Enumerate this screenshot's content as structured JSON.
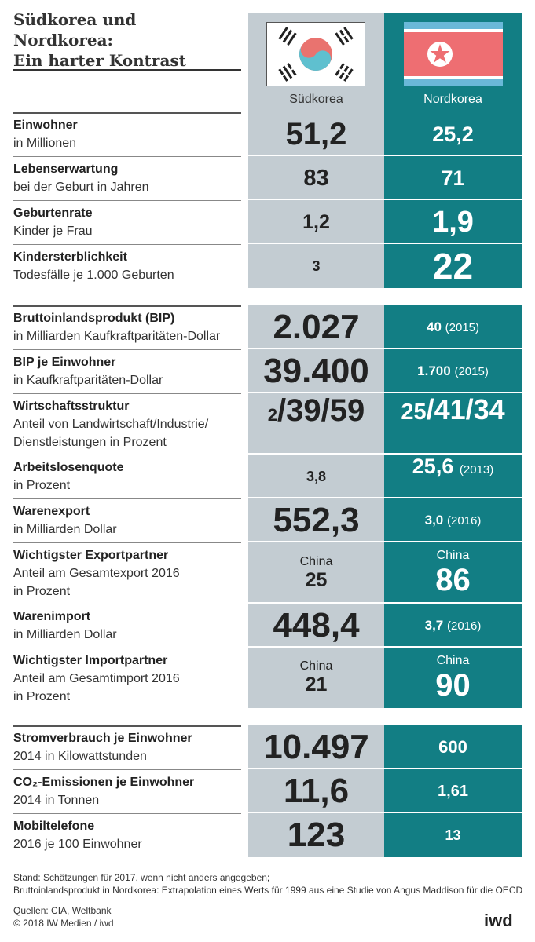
{
  "title_line1": "Südkorea und Nordkorea:",
  "title_line2": "Ein harter Kontrast",
  "colors": {
    "south_bg": "#c3ccd2",
    "north_bg": "#127e84"
  },
  "flags": {
    "south": "south-korea-flag-icon",
    "north": "north-korea-flag-icon"
  },
  "chart_data": {
    "type": "table",
    "title": "Südkorea und Nordkorea: Ein harter Kontrast",
    "columns": [
      "Südkorea",
      "Nordkorea"
    ],
    "rows": [
      {
        "label": "Einwohner",
        "sub": "in Millionen",
        "south": "51,2",
        "north": "25,2"
      },
      {
        "label": "Lebenserwartung",
        "sub": "bei der Geburt in Jahren",
        "south": "83",
        "north": "71"
      },
      {
        "label": "Geburtenrate",
        "sub": "Kinder je Frau",
        "south": "1,2",
        "north": "1,9"
      },
      {
        "label": "Kindersterblichkeit",
        "sub": "Todesfälle je 1.000 Geburten",
        "south": "3",
        "north": "22"
      },
      {
        "label": "Bruttoinlandsprodukt (BIP)",
        "sub": "in Milliarden Kaufkraftparitäten-Dollar",
        "south": "2.027",
        "north": "40",
        "north_note": "(2015)"
      },
      {
        "label": "BIP je Einwohner",
        "sub": "in Kaufkraftparitäten-Dollar",
        "south": "39.400",
        "north": "1.700",
        "north_note": "(2015)"
      },
      {
        "label": "Wirtschaftsstruktur",
        "sub": "Anteil von Landwirtschaft/Industrie/",
        "sub2": "Dienstleistungen in Prozent",
        "south_parts": [
          "2",
          "/39/59"
        ],
        "north_parts": [
          "25",
          "/41/34"
        ]
      },
      {
        "label": "Arbeitslosenquote",
        "sub": "in Prozent",
        "south": "3,8",
        "north": "25,6",
        "north_note": "(2013)"
      },
      {
        "label": "Warenexport",
        "sub": "in Milliarden Dollar",
        "south": "552,3",
        "north": "3,0",
        "north_note": "(2016)"
      },
      {
        "label": "Wichtigster Exportpartner",
        "sub": "Anteil am Gesamtexport 2016",
        "sub2": "in Prozent",
        "south_partner": "China",
        "south": "25",
        "north_partner": "China",
        "north": "86"
      },
      {
        "label": "Warenimport",
        "sub": "in Milliarden Dollar",
        "south": "448,4",
        "north": "3,7",
        "north_note": "(2016)"
      },
      {
        "label": "Wichtigster Importpartner",
        "sub": "Anteil am Gesamtimport 2016",
        "sub2": "in Prozent",
        "south_partner": "China",
        "south": "21",
        "north_partner": "China",
        "north": "90"
      },
      {
        "label": "Stromverbrauch je Einwohner",
        "sub": "2014 in Kilowattstunden",
        "south": "10.497",
        "north": "600"
      },
      {
        "label": "CO₂-Emissionen je Einwohner",
        "sub": "2014 in Tonnen",
        "south": "11,6",
        "north": "1,61"
      },
      {
        "label": "Mobiltelefone",
        "sub": "2016 je 100 Einwohner",
        "south": "123",
        "north": "13"
      }
    ]
  },
  "footer": {
    "note1": "Stand: Schätzungen für 2017, wenn nicht anders angegeben;",
    "note2": "Bruttoinlandsprodukt in Nordkorea: Extrapolation eines Werts für 1999 aus eine Studie von Angus Maddison für die OECD",
    "sources": "Quellen: CIA, Weltbank",
    "copyright": "© 2018 IW Medien / iwd",
    "logo": "iwd"
  }
}
